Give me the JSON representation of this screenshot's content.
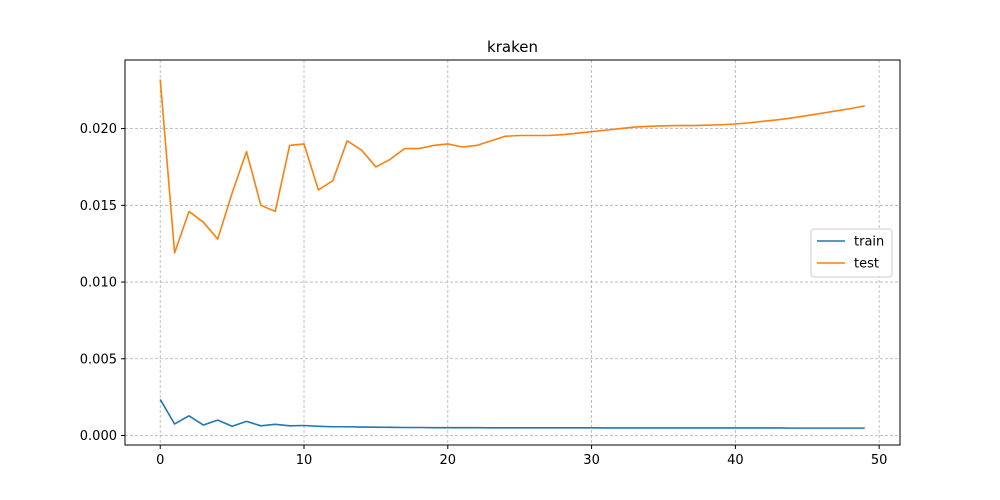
{
  "chart_data": {
    "type": "line",
    "title": "kraken",
    "xlabel": "",
    "ylabel": "",
    "xlim": [
      -2.45,
      51.45
    ],
    "ylim": [
      -0.00062,
      0.02447
    ],
    "xticks": [
      0,
      10,
      20,
      30,
      40,
      50
    ],
    "xtick_labels": [
      "0",
      "10",
      "20",
      "30",
      "40",
      "50"
    ],
    "yticks": [
      0.0,
      0.005,
      0.01,
      0.015,
      0.02
    ],
    "ytick_labels": [
      "0.000",
      "0.005",
      "0.010",
      "0.015",
      "0.020"
    ],
    "grid": true,
    "legend_position": "center-right",
    "x": [
      0,
      1,
      2,
      3,
      4,
      5,
      6,
      7,
      8,
      9,
      10,
      11,
      12,
      13,
      14,
      15,
      16,
      17,
      18,
      19,
      20,
      21,
      22,
      23,
      24,
      25,
      26,
      27,
      28,
      29,
      30,
      31,
      32,
      33,
      34,
      35,
      36,
      37,
      38,
      39,
      40,
      41,
      42,
      43,
      44,
      45,
      46,
      47,
      48,
      49
    ],
    "series": [
      {
        "name": "train",
        "color": "#1f77b4",
        "values": [
          0.00235,
          0.00075,
          0.00128,
          0.00068,
          0.001,
          0.0006,
          0.00092,
          0.00063,
          0.00073,
          0.00063,
          0.00065,
          0.0006,
          0.00057,
          0.00057,
          0.00055,
          0.00054,
          0.00053,
          0.00052,
          0.00052,
          0.00051,
          0.00051,
          0.00051,
          0.00051,
          0.0005,
          0.0005,
          0.0005,
          0.0005,
          0.0005,
          0.0005,
          0.0005,
          0.0005,
          0.00049,
          0.00049,
          0.00049,
          0.00049,
          0.00049,
          0.00049,
          0.00049,
          0.00049,
          0.00049,
          0.00049,
          0.00049,
          0.00049,
          0.00049,
          0.00048,
          0.00048,
          0.00048,
          0.00048,
          0.00048,
          0.00048
        ]
      },
      {
        "name": "test",
        "color": "#ff7f0e",
        "values": [
          0.0232,
          0.0119,
          0.0146,
          0.0139,
          0.0128,
          0.0158,
          0.0185,
          0.015,
          0.0146,
          0.0189,
          0.019,
          0.016,
          0.0166,
          0.0192,
          0.0186,
          0.0175,
          0.018,
          0.0187,
          0.0187,
          0.0189,
          0.019,
          0.0188,
          0.0189,
          0.0192,
          0.0195,
          0.01955,
          0.01955,
          0.01955,
          0.0196,
          0.0197,
          0.0198,
          0.0199,
          0.02,
          0.0201,
          0.02015,
          0.02018,
          0.0202,
          0.0202,
          0.02022,
          0.02025,
          0.0203,
          0.02038,
          0.02048,
          0.02058,
          0.0207,
          0.02085,
          0.021,
          0.02115,
          0.0213,
          0.02148
        ]
      }
    ]
  }
}
